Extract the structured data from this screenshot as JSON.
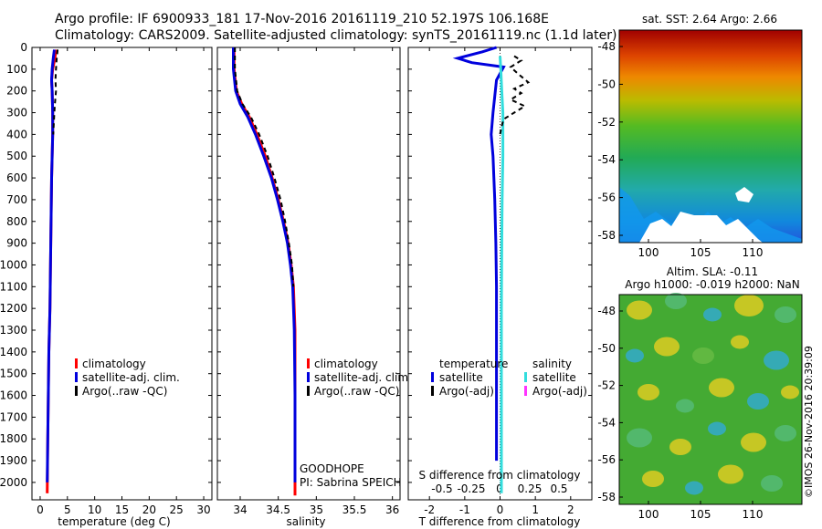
{
  "title": {
    "line1": "Argo profile: IF 6900933_181 17-Nov-2016 20161119_210 52.197S 106.168E",
    "line2": "Climatology: CARS2009. Satellite-adjusted climatology: synTS_20161119.nc (1.1d later)"
  },
  "colors": {
    "climatology": "#ff0000",
    "satellite": "#0000dd",
    "argo": "#000000",
    "sal_satellite": "#33dddd",
    "sal_argo": "#ff33ff"
  },
  "chart_data": [
    {
      "type": "line",
      "name": "temperature-profile",
      "xlabel": "temperature (deg C)",
      "xlim": [
        -1.5,
        31.5
      ],
      "ylim": [
        0,
        2080
      ],
      "xticks": [
        0,
        5,
        10,
        15,
        20,
        25,
        30
      ],
      "yticks": [
        0,
        100,
        200,
        300,
        400,
        500,
        600,
        700,
        800,
        900,
        1000,
        1100,
        1200,
        1300,
        1400,
        1500,
        1600,
        1700,
        1800,
        1900,
        2000
      ],
      "legend": [
        "climatology",
        "satellite-adj. clim.",
        "Argo(..raw -QC)"
      ],
      "series": [
        {
          "name": "climatology",
          "color": "#ff0000",
          "x": [
            2.9,
            2.7,
            2.3,
            2.1,
            2.2,
            2.3,
            2.3,
            2.2,
            2.1,
            2.0,
            1.9,
            1.8,
            1.6,
            1.5,
            1.4,
            1.3
          ],
          "y": [
            10,
            50,
            100,
            150,
            200,
            300,
            400,
            500,
            600,
            800,
            1000,
            1200,
            1400,
            1600,
            1800,
            2050
          ]
        },
        {
          "name": "satellite-adj. clim.",
          "color": "#0000dd",
          "x": [
            2.6,
            2.4,
            2.2,
            2.1,
            2.2,
            2.3,
            2.3,
            2.2,
            2.1,
            2.0,
            1.9,
            1.8,
            1.6,
            1.5,
            1.4,
            1.3
          ],
          "y": [
            10,
            50,
            100,
            150,
            200,
            300,
            400,
            500,
            600,
            800,
            1000,
            1200,
            1400,
            1600,
            1800,
            2000
          ]
        },
        {
          "name": "Argo",
          "color": "#000000",
          "x": [
            3.2,
            3.0,
            2.9,
            2.8,
            2.9,
            2.7,
            2.6,
            2.5,
            2.4
          ],
          "y": [
            10,
            60,
            100,
            150,
            200,
            260,
            300,
            350,
            400
          ]
        }
      ]
    },
    {
      "type": "line",
      "name": "salinity-profile",
      "xlabel": "salinity",
      "xlim": [
        33.7,
        36.1
      ],
      "ylim": [
        0,
        2080
      ],
      "xticks": [
        34,
        34.5,
        35,
        35.5,
        36
      ],
      "legend": [
        "climatology",
        "satellite-adj. clim.",
        "Argo(..raw -QC)"
      ],
      "annotation": [
        "GOODHOPE",
        "PI: Sabrina SPEICH"
      ],
      "series": [
        {
          "name": "climatology",
          "color": "#ff0000",
          "x": [
            33.92,
            33.92,
            33.95,
            34.02,
            34.12,
            34.22,
            34.33,
            34.42,
            34.5,
            34.57,
            34.63,
            34.67,
            34.7,
            34.72,
            34.72,
            34.72
          ],
          "y": [
            0,
            100,
            200,
            260,
            320,
            400,
            500,
            600,
            700,
            800,
            900,
            1000,
            1100,
            1300,
            1600,
            2060
          ]
        },
        {
          "name": "satellite-adj. clim.",
          "color": "#0000dd",
          "x": [
            33.91,
            33.91,
            33.94,
            34.0,
            34.1,
            34.2,
            34.31,
            34.41,
            34.49,
            34.56,
            34.62,
            34.66,
            34.69,
            34.71,
            34.72,
            34.72
          ],
          "y": [
            0,
            100,
            200,
            260,
            320,
            400,
            500,
            600,
            700,
            800,
            900,
            1000,
            1100,
            1300,
            1600,
            2000
          ]
        },
        {
          "name": "Argo",
          "color": "#000000",
          "x": [
            33.93,
            33.93,
            33.96,
            34.03,
            34.14,
            34.25,
            34.36,
            34.45,
            34.53,
            34.59,
            34.64,
            34.68,
            34.7
          ],
          "y": [
            0,
            100,
            200,
            260,
            320,
            400,
            500,
            600,
            700,
            800,
            900,
            1000,
            1100
          ]
        }
      ]
    },
    {
      "type": "line",
      "name": "difference-profile",
      "xlabel": "T difference from climatology",
      "x2label": "S difference from climatology",
      "xlim": [
        -2.6,
        2.6
      ],
      "ylim": [
        0,
        2080
      ],
      "xticks": [
        -2,
        -1,
        0,
        1,
        2
      ],
      "x2ticks": [
        "-0.5",
        "-0.25",
        "0",
        "0.25",
        "0.5"
      ],
      "legend_groups": [
        {
          "heading": "temperature",
          "items": [
            "satellite",
            "Argo(-adj)"
          ]
        },
        {
          "heading": "salinity",
          "items": [
            "satellite",
            "Argo(-adj)"
          ]
        }
      ],
      "series": [
        {
          "name": "temperature satellite",
          "color": "#0000dd",
          "x": [
            -0.1,
            -0.5,
            -1.2,
            -0.8,
            0.1,
            -0.1,
            -0.2,
            -0.25,
            -0.2,
            -0.15,
            -0.12,
            -0.1,
            -0.1,
            -0.1,
            -0.1
          ],
          "y": [
            0,
            20,
            50,
            70,
            90,
            150,
            300,
            400,
            500,
            700,
            900,
            1100,
            1400,
            1700,
            1900
          ]
        },
        {
          "name": "salinity satellite",
          "color": "#33dddd",
          "x": [
            0.0,
            0.02,
            0.05,
            0.08,
            0.08,
            0.06,
            0.05,
            0.04,
            0.04,
            0.04,
            0.04
          ],
          "y": [
            40,
            100,
            200,
            300,
            500,
            700,
            900,
            1200,
            1500,
            1800,
            2050
          ]
        },
        {
          "name": "Argo(-adj)",
          "color": "#000000",
          "x": [
            0.4,
            0.6,
            0.3,
            0.5,
            0.8,
            0.4,
            0.6,
            0.3,
            0.7,
            0.4,
            0.1,
            0.05,
            0.0
          ],
          "y": [
            40,
            60,
            90,
            120,
            160,
            190,
            210,
            240,
            270,
            300,
            330,
            360,
            400
          ]
        }
      ]
    }
  ],
  "maps": {
    "sst": {
      "title": "sat. SST: 2.64 Argo: 2.66",
      "yticks": [
        "-48",
        "-50",
        "-52",
        "-54",
        "-56",
        "-58"
      ],
      "xticks": [
        "100",
        "105",
        "110"
      ]
    },
    "sla": {
      "title_line1": "Altim. SLA: -0.11",
      "title_line2": "Argo h1000: -0.019 h2000: NaN",
      "yticks": [
        "-48",
        "-50",
        "-52",
        "-54",
        "-56",
        "-58"
      ],
      "xticks": [
        "100",
        "105",
        "110"
      ]
    }
  },
  "footer": "©IMOS 26-Nov-2016 20:39:09"
}
